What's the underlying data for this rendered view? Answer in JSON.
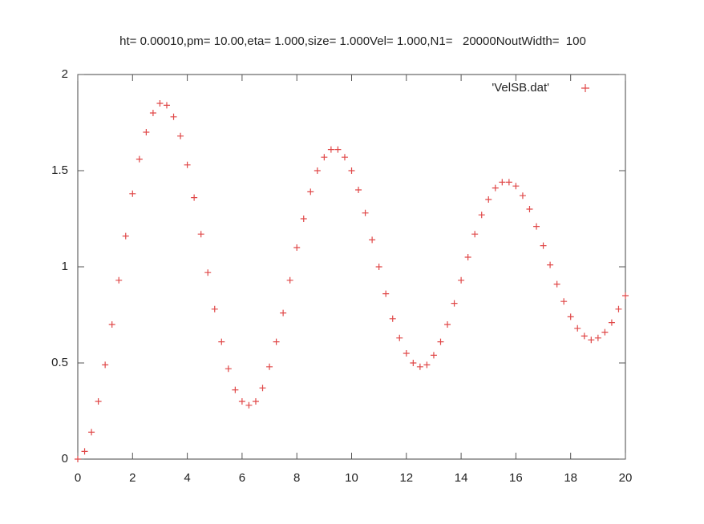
{
  "chart_data": {
    "type": "scatter",
    "title": "ht= 0.00010,pm= 10.00,eta= 1.000,size= 1.000Vel= 1.000,N1=   20000NoutWidth=  100",
    "series": [
      {
        "name": "'VelSB.dat'",
        "color": "#e04848",
        "x": [
          0,
          0.25,
          0.5,
          0.75,
          1,
          1.25,
          1.5,
          1.75,
          2,
          2.25,
          2.5,
          2.75,
          3,
          3.25,
          3.5,
          3.75,
          4,
          4.25,
          4.5,
          4.75,
          5,
          5.25,
          5.5,
          5.75,
          6,
          6.25,
          6.5,
          6.75,
          7,
          7.25,
          7.5,
          7.75,
          8,
          8.25,
          8.5,
          8.75,
          9,
          9.25,
          9.5,
          9.75,
          10,
          10.25,
          10.5,
          10.75,
          11,
          11.25,
          11.5,
          11.75,
          12,
          12.25,
          12.5,
          12.75,
          13,
          13.25,
          13.5,
          13.75,
          14,
          14.25,
          14.5,
          14.75,
          15,
          15.25,
          15.5,
          15.75,
          16,
          16.25,
          16.5,
          16.75,
          17,
          17.25,
          17.5,
          17.75,
          18,
          18.25,
          18.5,
          18.75,
          19,
          19.25,
          19.5,
          19.75,
          20
        ],
        "values": [
          0,
          0.04,
          0.14,
          0.3,
          0.49,
          0.7,
          0.93,
          1.16,
          1.38,
          1.56,
          1.7,
          1.8,
          1.85,
          1.84,
          1.78,
          1.68,
          1.53,
          1.36,
          1.17,
          0.97,
          0.78,
          0.61,
          0.47,
          0.36,
          0.3,
          0.28,
          0.3,
          0.37,
          0.48,
          0.61,
          0.76,
          0.93,
          1.1,
          1.25,
          1.39,
          1.5,
          1.57,
          1.61,
          1.61,
          1.57,
          1.5,
          1.4,
          1.28,
          1.14,
          1.0,
          0.86,
          0.73,
          0.63,
          0.55,
          0.5,
          0.48,
          0.49,
          0.54,
          0.61,
          0.7,
          0.81,
          0.93,
          1.05,
          1.17,
          1.27,
          1.35,
          1.41,
          1.44,
          1.44,
          1.42,
          1.37,
          1.3,
          1.21,
          1.11,
          1.01,
          0.91,
          0.82,
          0.74,
          0.68,
          0.64,
          0.62,
          0.63,
          0.66,
          0.71,
          0.78,
          0.85
        ]
      }
    ],
    "xlim": [
      0,
      20
    ],
    "xticks": [
      0,
      2,
      4,
      6,
      8,
      10,
      12,
      14,
      16,
      18,
      20
    ],
    "ylim": [
      0,
      2
    ],
    "yticks": [
      0,
      0.5,
      1,
      1.5,
      2
    ],
    "grid": false,
    "legend": "top-right"
  }
}
